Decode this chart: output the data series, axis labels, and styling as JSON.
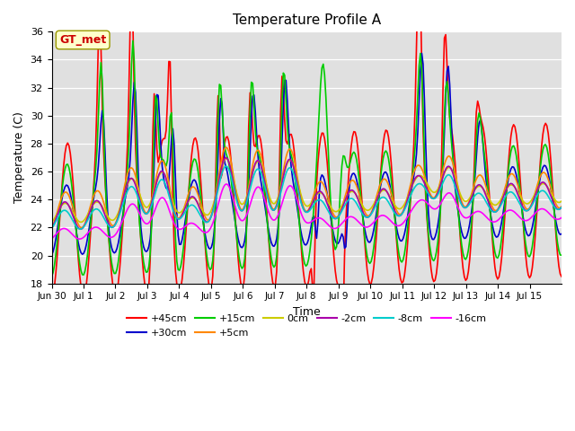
{
  "title": "Temperature Profile A",
  "xlabel": "Time",
  "ylabel": "Temperature (C)",
  "ylim": [
    18,
    36
  ],
  "yticks": [
    18,
    20,
    22,
    24,
    26,
    28,
    30,
    32,
    34,
    36
  ],
  "x_labels": [
    "Jun 30",
    "Jul 1",
    "Jul 2",
    "Jul 3",
    "Jul 4",
    "Jul 5",
    "Jul 6",
    "Jul 7",
    "Jul 8",
    "Jul 9",
    "Jul 10",
    "Jul 11",
    "Jul 12",
    "Jul 13",
    "Jul 14",
    "Jul 15"
  ],
  "series": {
    "+45cm": {
      "color": "#FF0000",
      "lw": 1.2
    },
    "+30cm": {
      "color": "#0000CC",
      "lw": 1.2
    },
    "+15cm": {
      "color": "#00CC00",
      "lw": 1.2
    },
    "+5cm": {
      "color": "#FF8800",
      "lw": 1.2
    },
    "0cm": {
      "color": "#CCCC00",
      "lw": 1.2
    },
    "-2cm": {
      "color": "#AA00AA",
      "lw": 1.2
    },
    "-8cm": {
      "color": "#00CCCC",
      "lw": 1.2
    },
    "-16cm": {
      "color": "#FF00FF",
      "lw": 1.2
    }
  },
  "annotation_text": "GT_met",
  "annotation_bg": "#FFFFCC",
  "annotation_fg": "#CC0000",
  "bg_color": "#E0E0E0"
}
